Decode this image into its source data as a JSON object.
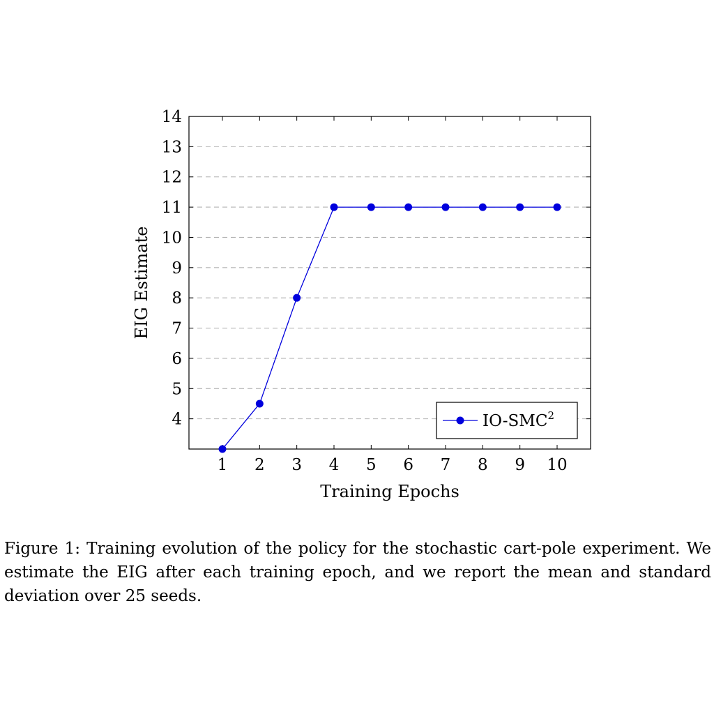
{
  "chart_data": {
    "type": "line",
    "title": "",
    "xlabel": "Training Epochs",
    "ylabel": "EIG Estimate",
    "x": [
      1,
      2,
      3,
      4,
      5,
      6,
      7,
      8,
      9,
      10
    ],
    "xticks": [
      1,
      2,
      3,
      4,
      5,
      6,
      7,
      8,
      9,
      10
    ],
    "yticks": [
      4,
      5,
      6,
      7,
      8,
      9,
      10,
      11,
      12,
      13,
      14
    ],
    "xlim": [
      0.1,
      10.9
    ],
    "ylim": [
      3,
      14
    ],
    "grid": "horizontal dashed",
    "legend_position": "bottom-right",
    "series": [
      {
        "name": "IO-SMC",
        "name_superscript": "2",
        "color": "#0000dd",
        "marker": "filled-circle",
        "values": [
          3,
          4.5,
          8,
          11,
          11,
          11,
          11,
          11,
          11,
          11
        ]
      }
    ]
  },
  "caption": "Figure 1: Training evolution of the policy for the stochastic cart-pole experiment. We estimate the EIG after each training epoch, and we report the mean and standard deviation over 25 seeds."
}
